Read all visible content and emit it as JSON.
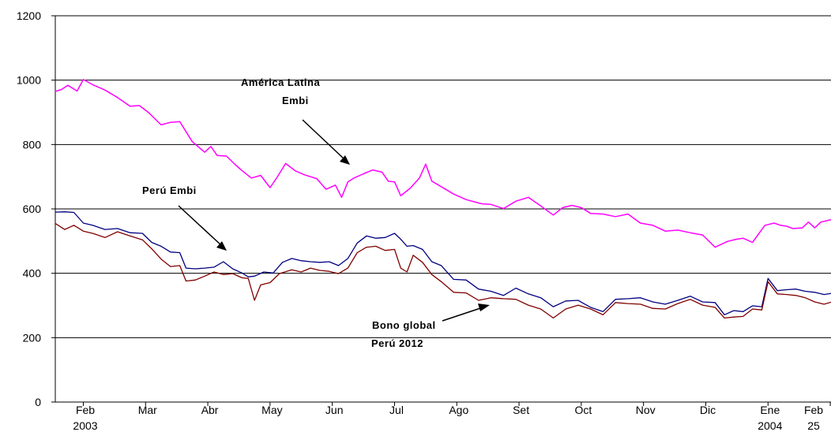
{
  "chart_data": {
    "type": "line",
    "title": "",
    "xlabel": "",
    "ylabel": "",
    "ylim": [
      0,
      1200
    ],
    "y_ticks": [
      "0",
      "200",
      "400",
      "600",
      "800",
      "1000",
      "1200"
    ],
    "grid": "horizontal",
    "x_tick_labels": [
      {
        "month": "Feb",
        "year": "2003"
      },
      {
        "month": "Mar",
        "year": ""
      },
      {
        "month": "Abr",
        "year": ""
      },
      {
        "month": "May",
        "year": ""
      },
      {
        "month": "Jun",
        "year": ""
      },
      {
        "month": "Jul",
        "year": ""
      },
      {
        "month": "Ago",
        "year": ""
      },
      {
        "month": "Set",
        "year": ""
      },
      {
        "month": "Oct",
        "year": ""
      },
      {
        "month": "Nov",
        "year": ""
      },
      {
        "month": "Dic",
        "year": ""
      },
      {
        "month": "Ene",
        "year": "2004"
      },
      {
        "month": "Feb",
        "year": "25"
      }
    ],
    "x_range_months": [
      0,
      12.55
    ],
    "series": [
      {
        "key": "america_latina",
        "color": "#ff00ff",
        "x": [
          0,
          0.1,
          0.2,
          0.35,
          0.45,
          0.6,
          0.8,
          1.0,
          1.2,
          1.35,
          1.5,
          1.7,
          1.85,
          2.0,
          2.2,
          2.4,
          2.5,
          2.6,
          2.75,
          2.9,
          3.0,
          3.15,
          3.3,
          3.45,
          3.55,
          3.7,
          3.85,
          4.0,
          4.2,
          4.35,
          4.5,
          4.6,
          4.7,
          4.8,
          4.95,
          5.1,
          5.25,
          5.35,
          5.45,
          5.55,
          5.7,
          5.85,
          5.95,
          6.05,
          6.2,
          6.4,
          6.6,
          6.85,
          7.0,
          7.2,
          7.4,
          7.6,
          7.8,
          8.0,
          8.15,
          8.3,
          8.45,
          8.6,
          8.8,
          9.0,
          9.2,
          9.4,
          9.6,
          9.8,
          10.0,
          10.2,
          10.4,
          10.6,
          10.8,
          10.95,
          11.05,
          11.2,
          11.4,
          11.55,
          11.65,
          11.75,
          11.85,
          12.0,
          12.1,
          12.2,
          12.3,
          12.45,
          12.55
        ],
        "values": [
          965,
          975,
          980,
          970,
          998,
          990,
          965,
          950,
          915,
          925,
          895,
          865,
          865,
          875,
          805,
          780,
          790,
          770,
          760,
          740,
          715,
          700,
          700,
          670,
          690,
          745,
          715,
          710,
          690,
          665,
          670,
          640,
          680,
          700,
          705,
          725,
          710,
          690,
          680,
          645,
          660,
          700,
          735,
          690,
          665,
          650,
          625,
          620,
          610,
          605,
          620,
          640,
          605,
          585,
          600,
          615,
          600,
          590,
          580,
          580,
          580,
          560,
          545,
          535,
          530,
          530,
          515,
          485,
          495,
          510,
          505,
          500,
          545,
          560,
          545,
          550,
          535,
          545,
          555,
          545,
          555,
          570,
          570
        ]
      },
      {
        "key": "peru_embi",
        "color": "#000080",
        "x": [
          0,
          0.15,
          0.3,
          0.45,
          0.6,
          0.8,
          1.0,
          1.2,
          1.4,
          1.55,
          1.7,
          1.85,
          2.0,
          2.1,
          2.25,
          2.4,
          2.55,
          2.7,
          2.85,
          3.0,
          3.1,
          3.2,
          3.35,
          3.5,
          3.65,
          3.8,
          3.95,
          4.1,
          4.25,
          4.4,
          4.55,
          4.7,
          4.85,
          5.0,
          5.15,
          5.3,
          5.45,
          5.55,
          5.65,
          5.75,
          5.9,
          6.05,
          6.2,
          6.4,
          6.6,
          6.8,
          7.0,
          7.2,
          7.4,
          7.6,
          7.8,
          8.0,
          8.2,
          8.4,
          8.6,
          8.8,
          9.0,
          9.2,
          9.4,
          9.6,
          9.8,
          10.0,
          10.2,
          10.4,
          10.6,
          10.75,
          10.9,
          11.05,
          11.2,
          11.35,
          11.45,
          11.6,
          11.75,
          11.9,
          12.05,
          12.2,
          12.35,
          12.55
        ],
        "values": [
          590,
          595,
          585,
          560,
          545,
          540,
          535,
          530,
          520,
          500,
          480,
          470,
          460,
          420,
          410,
          420,
          415,
          440,
          410,
          405,
          385,
          395,
          400,
          405,
          430,
          450,
          435,
          440,
          430,
          440,
          420,
          450,
          490,
          520,
          505,
          515,
          520,
          510,
          480,
          490,
          470,
          440,
          420,
          385,
          375,
          355,
          340,
          335,
          350,
          340,
          320,
          300,
          310,
          320,
          290,
          285,
          315,
          325,
          320,
          315,
          300,
          320,
          325,
          315,
          305,
          275,
          280,
          285,
          295,
          300,
          380,
          350,
          345,
          355,
          340,
          345,
          330,
          340
        ]
      },
      {
        "key": "bono_global",
        "color": "#800000",
        "x": [
          0,
          0.15,
          0.3,
          0.45,
          0.6,
          0.8,
          1.0,
          1.2,
          1.4,
          1.55,
          1.7,
          1.85,
          2.0,
          2.1,
          2.25,
          2.4,
          2.55,
          2.7,
          2.85,
          3.0,
          3.1,
          3.2,
          3.3,
          3.45,
          3.6,
          3.8,
          3.95,
          4.1,
          4.25,
          4.4,
          4.55,
          4.7,
          4.85,
          5.0,
          5.15,
          5.3,
          5.45,
          5.55,
          5.65,
          5.75,
          5.9,
          6.05,
          6.2,
          6.4,
          6.6,
          6.8,
          7.0,
          7.2,
          7.4,
          7.6,
          7.8,
          8.0,
          8.2,
          8.4,
          8.6,
          8.8,
          9.0,
          9.2,
          9.4,
          9.6,
          9.8,
          10.0,
          10.2,
          10.4,
          10.6,
          10.75,
          10.9,
          11.05,
          11.2,
          11.35,
          11.45,
          11.6,
          11.75,
          11.9,
          12.05,
          12.2,
          12.35,
          12.55
        ],
        "values": [
          555,
          540,
          545,
          535,
          520,
          515,
          525,
          520,
          500,
          480,
          440,
          425,
          420,
          380,
          375,
          395,
          400,
          400,
          395,
          390,
          380,
          320,
          360,
          375,
          395,
          415,
          400,
          420,
          405,
          410,
          395,
          420,
          460,
          485,
          480,
          475,
          470,
          420,
          400,
          460,
          430,
          400,
          370,
          345,
          335,
          320,
          320,
          325,
          315,
          305,
          285,
          265,
          285,
          305,
          285,
          275,
          305,
          310,
          300,
          295,
          285,
          310,
          315,
          305,
          290,
          265,
          260,
          270,
          285,
          290,
          370,
          340,
          330,
          335,
          320,
          315,
          300,
          315
        ]
      }
    ],
    "annotations": [
      {
        "key": "america_latina_label",
        "lines": [
          "América Latina",
          "Embi"
        ]
      },
      {
        "key": "peru_embi_label",
        "lines": [
          "Perú  Embi"
        ]
      },
      {
        "key": "bono_label",
        "lines": [
          "Bono global",
          "Perú 2012"
        ]
      }
    ]
  }
}
